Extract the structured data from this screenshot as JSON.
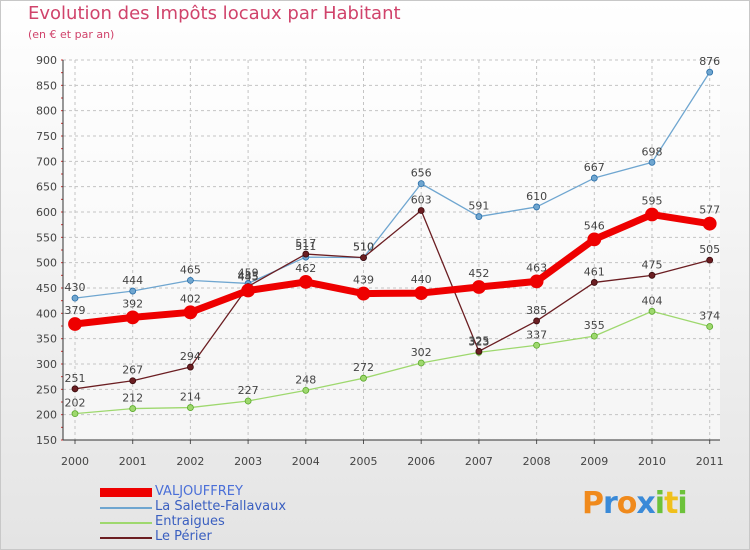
{
  "title": "Evolution des Impôts locaux par Habitant",
  "subtitle": "(en € et par an)",
  "logo": {
    "letters": [
      "P",
      "r",
      "o",
      "x",
      "i",
      "t",
      "i"
    ],
    "colors": [
      "#f08a1c",
      "#3a8ad8",
      "#f08a1c",
      "#3a8ad8",
      "#6cc23a",
      "#f0c01c",
      "#6cc23a"
    ]
  },
  "chart_data": {
    "type": "line",
    "title": "Evolution des Impôts locaux par Habitant",
    "subtitle": "(en € et par an)",
    "xlabel": "",
    "ylabel": "",
    "x": [
      "2000",
      "2001",
      "2002",
      "2003",
      "2004",
      "2005",
      "2006",
      "2007",
      "2008",
      "2009",
      "2010",
      "2011"
    ],
    "ylim": [
      150,
      900
    ],
    "yticks": [
      150,
      200,
      250,
      300,
      350,
      400,
      450,
      500,
      550,
      600,
      650,
      700,
      750,
      800,
      850,
      900
    ],
    "grid": true,
    "legend": "bottom-left",
    "series": [
      {
        "name": "VALJOUFFREY",
        "color": "#ee0000",
        "values": [
          379,
          392,
          402,
          445,
          462,
          439,
          440,
          452,
          463,
          546,
          595,
          577
        ],
        "labels": [
          "379",
          "392",
          "402",
          "445",
          "462",
          "439",
          "440",
          "452",
          "463",
          "546",
          "595",
          "577"
        ]
      },
      {
        "name": "La Salette-Fallavaux",
        "color": "#6fa6d0",
        "values": [
          430,
          444,
          465,
          459,
          511,
          510,
          656,
          591,
          610,
          667,
          698,
          876
        ],
        "labels": [
          "430",
          "444",
          "465",
          "459",
          "511",
          "510",
          "656",
          "591",
          "610",
          "667",
          "698",
          "876"
        ]
      },
      {
        "name": "Entraigues",
        "color": "#9ed86e",
        "values": [
          202,
          212,
          214,
          227,
          248,
          272,
          302,
          323,
          337,
          355,
          404,
          374
        ],
        "labels": [
          "202",
          "212",
          "214",
          "227",
          "248",
          "272",
          "302",
          "323",
          "337",
          "355",
          "404",
          "374"
        ]
      },
      {
        "name": "Le Périer",
        "color": "#6b1e22",
        "values": [
          251,
          267,
          294,
          453,
          517,
          510,
          603,
          325,
          385,
          461,
          475,
          505
        ],
        "labels": [
          "251",
          "267",
          "294",
          "453",
          "517",
          "510",
          "603",
          "325",
          "385",
          "461",
          "475",
          "505"
        ]
      }
    ]
  }
}
